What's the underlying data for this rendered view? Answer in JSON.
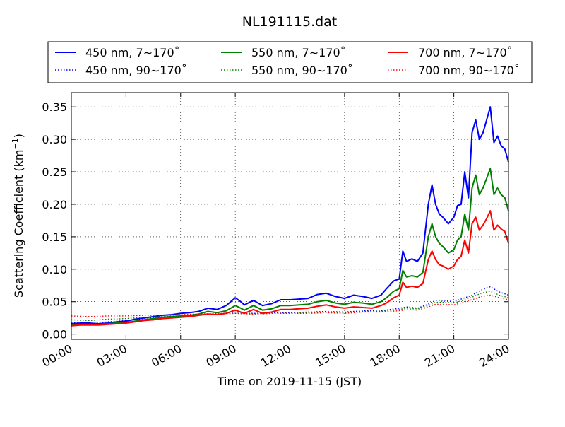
{
  "chart_data": {
    "type": "line",
    "title": "NL191115.dat",
    "xlabel": "Time on 2019-11-15 (JST)",
    "ylabel": "Scattering Coefficient (km",
    "ylabel_sup": "−1",
    "ylabel_close": ")",
    "xlim": [
      0,
      24
    ],
    "ylim": [
      -0.008,
      0.372
    ],
    "x_ticks": [
      0,
      3,
      6,
      9,
      12,
      15,
      18,
      21,
      24
    ],
    "x_tick_labels": [
      "00:00",
      "03:00",
      "06:00",
      "09:00",
      "12:00",
      "15:00",
      "18:00",
      "21:00",
      "24:00"
    ],
    "y_ticks": [
      0.0,
      0.05,
      0.1,
      0.15,
      0.2,
      0.25,
      0.3,
      0.35
    ],
    "y_tick_labels": [
      "0.00",
      "0.05",
      "0.10",
      "0.15",
      "0.20",
      "0.25",
      "0.30",
      "0.35"
    ],
    "grid": true,
    "legend_position": "top",
    "series": [
      {
        "name": "450 nm, 7∼170˚",
        "color": "#0000ff",
        "style": "solid",
        "x": [
          0,
          0.5,
          1,
          1.5,
          2,
          2.5,
          3,
          3.5,
          4,
          4.5,
          5,
          5.5,
          6,
          6.5,
          7,
          7.5,
          8,
          8.5,
          9,
          9.3,
          9.5,
          10,
          10.5,
          11,
          11.5,
          12,
          12.5,
          13,
          13.5,
          14,
          14.5,
          15,
          15.5,
          16,
          16.5,
          17,
          17.3,
          17.7,
          18,
          18.2,
          18.4,
          18.7,
          19,
          19.3,
          19.6,
          19.8,
          20,
          20.2,
          20.4,
          20.7,
          21,
          21.2,
          21.4,
          21.6,
          21.8,
          22,
          22.2,
          22.4,
          22.6,
          22.8,
          23,
          23.2,
          23.4,
          23.6,
          23.8,
          24
        ],
        "y": [
          0.016,
          0.017,
          0.017,
          0.016,
          0.017,
          0.019,
          0.02,
          0.023,
          0.025,
          0.027,
          0.029,
          0.03,
          0.032,
          0.033,
          0.035,
          0.04,
          0.038,
          0.044,
          0.056,
          0.05,
          0.045,
          0.052,
          0.044,
          0.047,
          0.053,
          0.053,
          0.054,
          0.055,
          0.061,
          0.063,
          0.058,
          0.055,
          0.06,
          0.058,
          0.055,
          0.06,
          0.07,
          0.082,
          0.085,
          0.128,
          0.112,
          0.116,
          0.112,
          0.125,
          0.2,
          0.23,
          0.2,
          0.185,
          0.18,
          0.17,
          0.18,
          0.198,
          0.2,
          0.25,
          0.21,
          0.31,
          0.33,
          0.3,
          0.31,
          0.33,
          0.35,
          0.295,
          0.305,
          0.29,
          0.285,
          0.265
        ]
      },
      {
        "name": "450 nm, 90∼170˚",
        "color": "#0000ff",
        "style": "dotted",
        "x": [
          0,
          1,
          2,
          3,
          4,
          5,
          6,
          7,
          8,
          9,
          10,
          11,
          12,
          13,
          14,
          15,
          16,
          17,
          18,
          18.5,
          19,
          19.5,
          20,
          20.5,
          21,
          21.5,
          22,
          22.5,
          23,
          23.5,
          24
        ],
        "y": [
          0.018,
          0.016,
          0.019,
          0.021,
          0.024,
          0.027,
          0.028,
          0.03,
          0.031,
          0.034,
          0.032,
          0.033,
          0.033,
          0.034,
          0.035,
          0.034,
          0.036,
          0.036,
          0.04,
          0.042,
          0.04,
          0.045,
          0.052,
          0.052,
          0.05,
          0.055,
          0.06,
          0.068,
          0.073,
          0.065,
          0.06
        ]
      },
      {
        "name": "550 nm, 7∼170˚",
        "color": "#008000",
        "style": "solid",
        "x": [
          0,
          0.5,
          1,
          1.5,
          2,
          2.5,
          3,
          3.5,
          4,
          4.5,
          5,
          5.5,
          6,
          6.5,
          7,
          7.5,
          8,
          8.5,
          9,
          9.3,
          9.5,
          10,
          10.5,
          11,
          11.5,
          12,
          12.5,
          13,
          13.5,
          14,
          14.5,
          15,
          15.5,
          16,
          16.5,
          17,
          17.3,
          17.7,
          18,
          18.2,
          18.4,
          18.7,
          19,
          19.3,
          19.6,
          19.8,
          20,
          20.2,
          20.4,
          20.7,
          21,
          21.2,
          21.4,
          21.6,
          21.8,
          22,
          22.2,
          22.4,
          22.6,
          22.8,
          23,
          23.2,
          23.4,
          23.6,
          23.8,
          24
        ],
        "y": [
          0.014,
          0.015,
          0.015,
          0.015,
          0.016,
          0.017,
          0.018,
          0.02,
          0.022,
          0.024,
          0.026,
          0.027,
          0.028,
          0.029,
          0.031,
          0.035,
          0.033,
          0.036,
          0.044,
          0.04,
          0.037,
          0.044,
          0.037,
          0.039,
          0.044,
          0.044,
          0.045,
          0.046,
          0.05,
          0.052,
          0.048,
          0.046,
          0.049,
          0.048,
          0.046,
          0.05,
          0.056,
          0.066,
          0.07,
          0.098,
          0.088,
          0.09,
          0.088,
          0.095,
          0.15,
          0.17,
          0.15,
          0.14,
          0.135,
          0.125,
          0.13,
          0.145,
          0.15,
          0.185,
          0.16,
          0.225,
          0.245,
          0.215,
          0.225,
          0.24,
          0.255,
          0.215,
          0.225,
          0.215,
          0.21,
          0.19
        ]
      },
      {
        "name": "550 nm, 90∼170˚",
        "color": "#008000",
        "style": "dotted",
        "x": [
          0,
          1,
          2,
          3,
          4,
          5,
          6,
          7,
          8,
          9,
          10,
          11,
          12,
          13,
          14,
          15,
          16,
          17,
          18,
          18.5,
          19,
          19.5,
          20,
          20.5,
          21,
          21.5,
          22,
          22.5,
          23,
          23.5,
          24
        ],
        "y": [
          0.022,
          0.021,
          0.023,
          0.024,
          0.026,
          0.027,
          0.028,
          0.03,
          0.031,
          0.032,
          0.031,
          0.032,
          0.032,
          0.033,
          0.034,
          0.033,
          0.035,
          0.035,
          0.038,
          0.04,
          0.039,
          0.043,
          0.049,
          0.049,
          0.048,
          0.052,
          0.057,
          0.063,
          0.066,
          0.06,
          0.056
        ]
      },
      {
        "name": "700 nm, 7∼170˚",
        "color": "#ff0000",
        "style": "solid",
        "x": [
          0,
          0.5,
          1,
          1.5,
          2,
          2.5,
          3,
          3.5,
          4,
          4.5,
          5,
          5.5,
          6,
          6.5,
          7,
          7.5,
          8,
          8.5,
          9,
          9.3,
          9.5,
          10,
          10.5,
          11,
          11.5,
          12,
          12.5,
          13,
          13.5,
          14,
          14.5,
          15,
          15.5,
          16,
          16.5,
          17,
          17.3,
          17.7,
          18,
          18.2,
          18.4,
          18.7,
          19,
          19.3,
          19.6,
          19.8,
          20,
          20.2,
          20.4,
          20.7,
          21,
          21.2,
          21.4,
          21.6,
          21.8,
          22,
          22.2,
          22.4,
          22.6,
          22.8,
          23,
          23.2,
          23.4,
          23.6,
          23.8,
          24
        ],
        "y": [
          0.013,
          0.014,
          0.014,
          0.014,
          0.015,
          0.016,
          0.017,
          0.019,
          0.021,
          0.022,
          0.024,
          0.025,
          0.026,
          0.027,
          0.029,
          0.031,
          0.03,
          0.032,
          0.037,
          0.034,
          0.032,
          0.038,
          0.032,
          0.034,
          0.038,
          0.038,
          0.039,
          0.04,
          0.043,
          0.045,
          0.042,
          0.04,
          0.042,
          0.041,
          0.04,
          0.044,
          0.048,
          0.056,
          0.06,
          0.08,
          0.072,
          0.074,
          0.072,
          0.078,
          0.115,
          0.128,
          0.115,
          0.107,
          0.105,
          0.1,
          0.105,
          0.115,
          0.12,
          0.145,
          0.125,
          0.17,
          0.18,
          0.16,
          0.168,
          0.178,
          0.19,
          0.16,
          0.168,
          0.162,
          0.158,
          0.14
        ]
      },
      {
        "name": "700 nm, 90∼170˚",
        "color": "#ff0000",
        "style": "dotted",
        "x": [
          0,
          1,
          2,
          3,
          4,
          5,
          6,
          7,
          8,
          9,
          10,
          11,
          12,
          13,
          14,
          15,
          16,
          17,
          18,
          18.5,
          19,
          19.5,
          20,
          20.5,
          21,
          21.5,
          22,
          22.5,
          23,
          23.5,
          24
        ],
        "y": [
          0.028,
          0.027,
          0.028,
          0.028,
          0.029,
          0.029,
          0.03,
          0.031,
          0.032,
          0.032,
          0.031,
          0.032,
          0.032,
          0.032,
          0.033,
          0.032,
          0.034,
          0.034,
          0.036,
          0.038,
          0.037,
          0.041,
          0.046,
          0.046,
          0.045,
          0.049,
          0.053,
          0.058,
          0.06,
          0.056,
          0.053
        ]
      }
    ]
  }
}
